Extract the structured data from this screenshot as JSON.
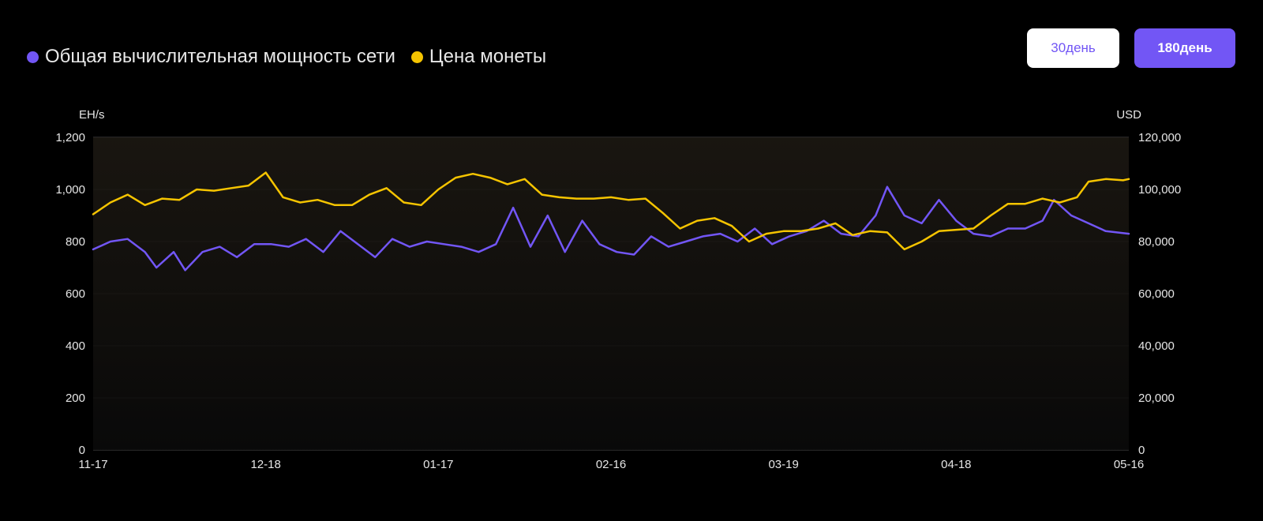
{
  "legend": [
    {
      "label": "Общая вычислительная мощность сети",
      "color": "#7256f5"
    },
    {
      "label": "Цена монеты",
      "color": "#f5c400"
    }
  ],
  "buttons": {
    "days30": "30день",
    "days180": "180день",
    "active": "180день"
  },
  "chart_data": {
    "type": "line",
    "y_left_label": "EH/s",
    "y_right_label": "USD",
    "y_left_range": [
      0,
      1200
    ],
    "y_right_range": [
      0,
      120000
    ],
    "y_left_ticks": [
      "0",
      "200",
      "400",
      "600",
      "800",
      "1,000",
      "1,200"
    ],
    "y_right_ticks": [
      "0",
      "20,000",
      "40,000",
      "60,000",
      "80,000",
      "100,000",
      "120,000"
    ],
    "x_ticks": [
      "11-17",
      "12-18",
      "01-17",
      "02-16",
      "03-19",
      "04-18",
      "05-16"
    ],
    "grid": true,
    "x_start": "2024-11-17",
    "x_end": "2025-05-16",
    "series": [
      {
        "name": "Общая вычислительная мощность сети",
        "axis": "left",
        "color": "#7256f5",
        "points": [
          [
            "2024-11-17",
            770
          ],
          [
            "2024-11-20",
            800
          ],
          [
            "2024-11-23",
            810
          ],
          [
            "2024-11-26",
            760
          ],
          [
            "2024-11-28",
            700
          ],
          [
            "2024-12-01",
            760
          ],
          [
            "2024-12-03",
            690
          ],
          [
            "2024-12-06",
            760
          ],
          [
            "2024-12-09",
            780
          ],
          [
            "2024-12-12",
            740
          ],
          [
            "2024-12-15",
            790
          ],
          [
            "2024-12-18",
            790
          ],
          [
            "2024-12-21",
            780
          ],
          [
            "2024-12-24",
            810
          ],
          [
            "2024-12-27",
            760
          ],
          [
            "2024-12-30",
            840
          ],
          [
            "2025-01-02",
            790
          ],
          [
            "2025-01-05",
            740
          ],
          [
            "2025-01-08",
            810
          ],
          [
            "2025-01-11",
            780
          ],
          [
            "2025-01-14",
            800
          ],
          [
            "2025-01-17",
            790
          ],
          [
            "2025-01-20",
            780
          ],
          [
            "2025-01-23",
            760
          ],
          [
            "2025-01-26",
            790
          ],
          [
            "2025-01-29",
            930
          ],
          [
            "2025-02-01",
            780
          ],
          [
            "2025-02-04",
            900
          ],
          [
            "2025-02-07",
            760
          ],
          [
            "2025-02-10",
            880
          ],
          [
            "2025-02-13",
            790
          ],
          [
            "2025-02-16",
            760
          ],
          [
            "2025-02-19",
            750
          ],
          [
            "2025-02-22",
            820
          ],
          [
            "2025-02-25",
            780
          ],
          [
            "2025-02-28",
            800
          ],
          [
            "2025-03-03",
            820
          ],
          [
            "2025-03-06",
            830
          ],
          [
            "2025-03-09",
            800
          ],
          [
            "2025-03-12",
            850
          ],
          [
            "2025-03-15",
            790
          ],
          [
            "2025-03-18",
            820
          ],
          [
            "2025-03-21",
            840
          ],
          [
            "2025-03-24",
            880
          ],
          [
            "2025-03-27",
            830
          ],
          [
            "2025-03-30",
            820
          ],
          [
            "2025-04-02",
            900
          ],
          [
            "2025-04-04",
            1010
          ],
          [
            "2025-04-07",
            900
          ],
          [
            "2025-04-10",
            870
          ],
          [
            "2025-04-13",
            960
          ],
          [
            "2025-04-16",
            880
          ],
          [
            "2025-04-19",
            830
          ],
          [
            "2025-04-22",
            820
          ],
          [
            "2025-04-25",
            850
          ],
          [
            "2025-04-28",
            850
          ],
          [
            "2025-05-01",
            880
          ],
          [
            "2025-05-03",
            960
          ],
          [
            "2025-05-06",
            900
          ],
          [
            "2025-05-09",
            870
          ],
          [
            "2025-05-12",
            840
          ],
          [
            "2025-05-16",
            830
          ]
        ]
      },
      {
        "name": "Цена монеты",
        "axis": "right",
        "color": "#f5c400",
        "points": [
          [
            "2024-11-17",
            90500
          ],
          [
            "2024-11-20",
            95000
          ],
          [
            "2024-11-23",
            98000
          ],
          [
            "2024-11-26",
            94000
          ],
          [
            "2024-11-29",
            96500
          ],
          [
            "2024-12-02",
            96000
          ],
          [
            "2024-12-05",
            100000
          ],
          [
            "2024-12-08",
            99500
          ],
          [
            "2024-12-11",
            100500
          ],
          [
            "2024-12-14",
            101500
          ],
          [
            "2024-12-17",
            106500
          ],
          [
            "2024-12-20",
            97000
          ],
          [
            "2024-12-23",
            95000
          ],
          [
            "2024-12-26",
            96000
          ],
          [
            "2024-12-29",
            94000
          ],
          [
            "2025-01-01",
            94000
          ],
          [
            "2025-01-04",
            98000
          ],
          [
            "2025-01-07",
            100500
          ],
          [
            "2025-01-10",
            95000
          ],
          [
            "2025-01-13",
            94000
          ],
          [
            "2025-01-16",
            100000
          ],
          [
            "2025-01-19",
            104500
          ],
          [
            "2025-01-22",
            106000
          ],
          [
            "2025-01-25",
            104500
          ],
          [
            "2025-01-28",
            102000
          ],
          [
            "2025-01-31",
            104000
          ],
          [
            "2025-02-03",
            98000
          ],
          [
            "2025-02-06",
            97000
          ],
          [
            "2025-02-09",
            96500
          ],
          [
            "2025-02-12",
            96500
          ],
          [
            "2025-02-15",
            97000
          ],
          [
            "2025-02-18",
            96000
          ],
          [
            "2025-02-21",
            96500
          ],
          [
            "2025-02-24",
            91000
          ],
          [
            "2025-02-27",
            85000
          ],
          [
            "2025-03-02",
            88000
          ],
          [
            "2025-03-05",
            89000
          ],
          [
            "2025-03-08",
            86000
          ],
          [
            "2025-03-11",
            80000
          ],
          [
            "2025-03-14",
            83000
          ],
          [
            "2025-03-17",
            84000
          ],
          [
            "2025-03-20",
            84000
          ],
          [
            "2025-03-23",
            85000
          ],
          [
            "2025-03-26",
            87000
          ],
          [
            "2025-03-29",
            82500
          ],
          [
            "2025-04-01",
            84000
          ],
          [
            "2025-04-04",
            83500
          ],
          [
            "2025-04-07",
            77000
          ],
          [
            "2025-04-10",
            80000
          ],
          [
            "2025-04-13",
            84000
          ],
          [
            "2025-04-16",
            84500
          ],
          [
            "2025-04-19",
            85000
          ],
          [
            "2025-04-22",
            90000
          ],
          [
            "2025-04-25",
            94500
          ],
          [
            "2025-04-28",
            94500
          ],
          [
            "2025-05-01",
            96500
          ],
          [
            "2025-05-04",
            95000
          ],
          [
            "2025-05-07",
            97000
          ],
          [
            "2025-05-09",
            103000
          ],
          [
            "2025-05-12",
            104000
          ],
          [
            "2025-05-15",
            103500
          ],
          [
            "2025-05-16",
            104000
          ]
        ]
      }
    ]
  }
}
